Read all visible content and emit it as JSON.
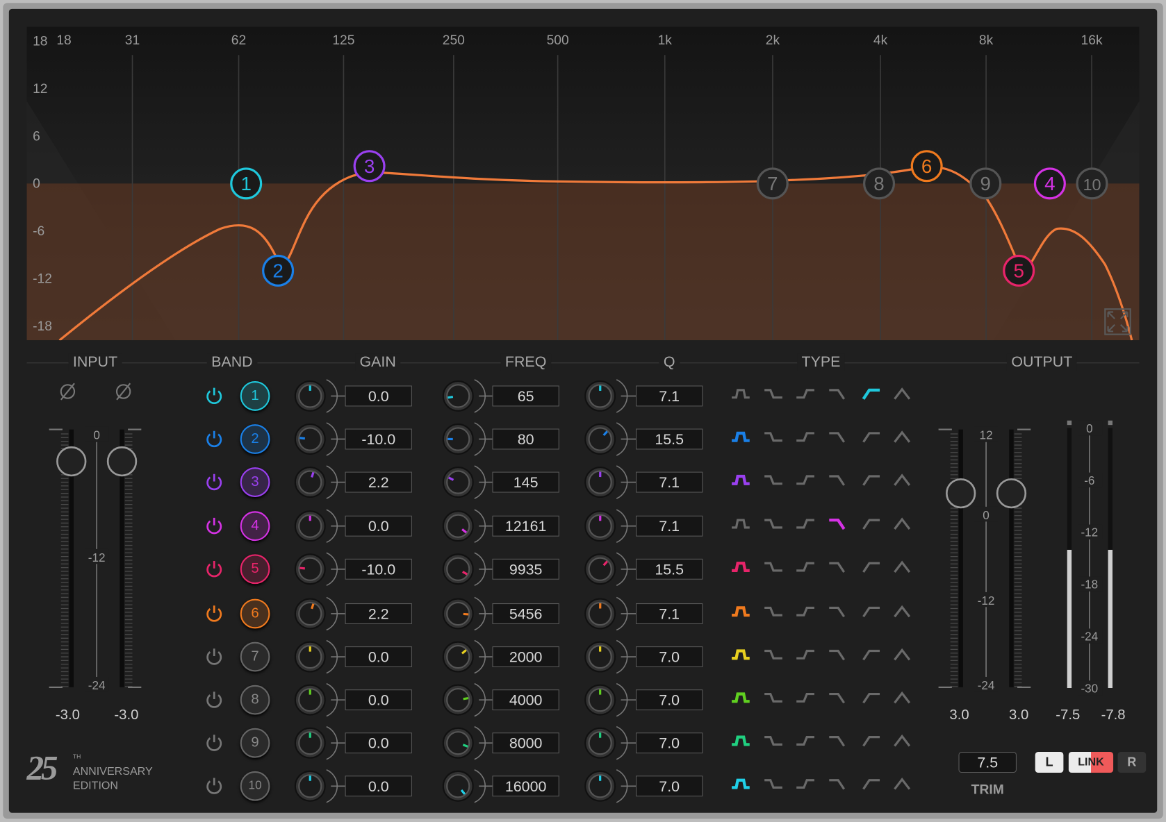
{
  "graph": {
    "freq_labels": [
      "18",
      "31",
      "62",
      "125",
      "250",
      "500",
      "1k",
      "2k",
      "4k",
      "8k",
      "16k"
    ],
    "db_labels": [
      "18",
      "12",
      "6",
      "0",
      "-6",
      "-12",
      "-18"
    ],
    "expand_icon": "expand-arrows-icon",
    "curve_color": "#f07a3a"
  },
  "headers": {
    "input": "INPUT",
    "band": "BAND",
    "gain": "GAIN",
    "freq": "FREQ",
    "q": "Q",
    "type": "TYPE",
    "output": "OUTPUT"
  },
  "bands": [
    {
      "num": "1",
      "enabled": true,
      "gain": "0.0",
      "freq": "65",
      "q": "7.1",
      "type": 4,
      "color": "#1fc8dc"
    },
    {
      "num": "2",
      "enabled": true,
      "gain": "-10.0",
      "freq": "80",
      "q": "15.5",
      "type": 0,
      "color": "#1a80e8"
    },
    {
      "num": "3",
      "enabled": true,
      "gain": "2.2",
      "freq": "145",
      "q": "7.1",
      "type": 0,
      "color": "#9a40f0"
    },
    {
      "num": "4",
      "enabled": true,
      "gain": "0.0",
      "freq": "12161",
      "q": "7.1",
      "type": 3,
      "color": "#d432e4"
    },
    {
      "num": "5",
      "enabled": true,
      "gain": "-10.0",
      "freq": "9935",
      "q": "15.5",
      "type": 0,
      "color": "#e8246a"
    },
    {
      "num": "6",
      "enabled": true,
      "gain": "2.2",
      "freq": "5456",
      "q": "7.1",
      "type": 0,
      "color": "#f07a1e"
    },
    {
      "num": "7",
      "enabled": false,
      "gain": "0.0",
      "freq": "2000",
      "q": "7.0",
      "type": 0,
      "color": "#e8d020"
    },
    {
      "num": "8",
      "enabled": false,
      "gain": "0.0",
      "freq": "4000",
      "q": "7.0",
      "type": 0,
      "color": "#60d020"
    },
    {
      "num": "9",
      "enabled": false,
      "gain": "0.0",
      "freq": "8000",
      "q": "7.0",
      "type": 0,
      "color": "#20d080"
    },
    {
      "num": "10",
      "enabled": false,
      "gain": "0.0",
      "freq": "16000",
      "q": "7.0",
      "type": 0,
      "color": "#20d0e8"
    }
  ],
  "type_icons": [
    "bell-icon",
    "low-shelf-icon",
    "high-shelf-icon",
    "low-pass-icon",
    "high-pass-icon",
    "notch-icon"
  ],
  "input": {
    "phase_icon": "phase-invert-icon",
    "scale": [
      "0",
      "-12",
      "-24"
    ],
    "left_value": "-3.0",
    "right_value": "-3.0"
  },
  "output": {
    "scale": [
      "12",
      "0",
      "-12",
      "-24"
    ],
    "left_value": "3.0",
    "right_value": "3.0",
    "meter_scale": [
      "0",
      "-6",
      "-12",
      "-18",
      "-24",
      "-30"
    ],
    "meter_left": "-7.5",
    "meter_right": "-7.8",
    "trim_value": "7.5",
    "trim_label": "TRIM",
    "l_label": "L",
    "link_label": "LINK",
    "r_label": "R",
    "link_color": "#f05a5a"
  },
  "logo": {
    "number": "25",
    "sup": "TH",
    "line1": "ANNIVERSARY",
    "line2": "EDITION"
  }
}
